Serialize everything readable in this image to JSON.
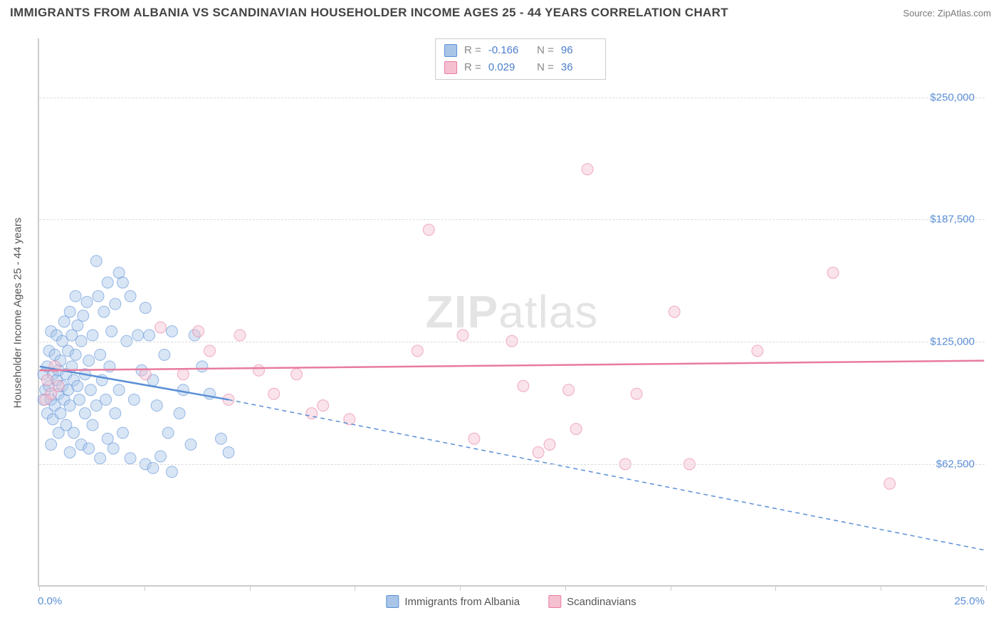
{
  "title": "IMMIGRANTS FROM ALBANIA VS SCANDINAVIAN HOUSEHOLDER INCOME AGES 25 - 44 YEARS CORRELATION CHART",
  "source_label": "Source:",
  "source_name": "ZipAtlas.com",
  "watermark": {
    "zip": "ZIP",
    "rest": "atlas"
  },
  "chart": {
    "type": "scatter",
    "background_color": "#ffffff",
    "grid_color": "#dddddd",
    "axis_color": "#cccccc",
    "label_color": "#555555",
    "tick_label_color": "#5b8fd6",
    "y_axis_label": "Householder Income Ages 25 - 44 years",
    "xlim": [
      0,
      25
    ],
    "ylim": [
      0,
      280000
    ],
    "x_ticks": [
      0,
      2.78,
      5.56,
      8.33,
      11.11,
      13.89,
      16.67,
      19.44,
      22.22,
      25
    ],
    "y_ticks": [
      62500,
      125000,
      187500,
      250000
    ],
    "y_tick_labels": [
      "$62,500",
      "$125,000",
      "$187,500",
      "$250,000"
    ],
    "x_min_label": "0.0%",
    "x_max_label": "25.0%",
    "marker_radius": 8,
    "marker_opacity": 0.45,
    "line_width": 2.5,
    "series": [
      {
        "key": "albania",
        "label": "Immigrants from Albania",
        "color": "#5b8fd6",
        "fill": "#a8c5e8",
        "R_label": "R",
        "R": "-0.166",
        "N_label": "N",
        "N": "96",
        "trend_solid": {
          "x1": 0,
          "y1": 112000,
          "x2": 5.0,
          "y2": 95000
        },
        "trend_dash": {
          "x1": 5.0,
          "y1": 95000,
          "x2": 25.0,
          "y2": 18000
        },
        "points": [
          [
            0.1,
            95000
          ],
          [
            0.1,
            108000
          ],
          [
            0.15,
            100000
          ],
          [
            0.2,
            112000
          ],
          [
            0.2,
            88000
          ],
          [
            0.25,
            120000
          ],
          [
            0.25,
            102000
          ],
          [
            0.3,
            95000
          ],
          [
            0.3,
            130000
          ],
          [
            0.35,
            108000
          ],
          [
            0.35,
            85000
          ],
          [
            0.4,
            118000
          ],
          [
            0.4,
            92000
          ],
          [
            0.45,
            105000
          ],
          [
            0.45,
            128000
          ],
          [
            0.5,
            110000
          ],
          [
            0.5,
            98000
          ],
          [
            0.5,
            78000
          ],
          [
            0.55,
            115000
          ],
          [
            0.55,
            88000
          ],
          [
            0.6,
            125000
          ],
          [
            0.6,
            102000
          ],
          [
            0.65,
            95000
          ],
          [
            0.65,
            135000
          ],
          [
            0.7,
            108000
          ],
          [
            0.7,
            82000
          ],
          [
            0.75,
            120000
          ],
          [
            0.75,
            100000
          ],
          [
            0.8,
            140000
          ],
          [
            0.8,
            92000
          ],
          [
            0.85,
            112000
          ],
          [
            0.85,
            128000
          ],
          [
            0.9,
            105000
          ],
          [
            0.9,
            78000
          ],
          [
            0.95,
            118000
          ],
          [
            0.95,
            148000
          ],
          [
            1.0,
            102000
          ],
          [
            1.0,
            133000
          ],
          [
            1.05,
            95000
          ],
          [
            1.1,
            125000
          ],
          [
            1.1,
            72000
          ],
          [
            1.15,
            138000
          ],
          [
            1.2,
            108000
          ],
          [
            1.2,
            88000
          ],
          [
            1.25,
            145000
          ],
          [
            1.3,
            115000
          ],
          [
            1.3,
            70000
          ],
          [
            1.35,
            100000
          ],
          [
            1.4,
            128000
          ],
          [
            1.4,
            82000
          ],
          [
            1.5,
            166000
          ],
          [
            1.5,
            92000
          ],
          [
            1.55,
            148000
          ],
          [
            1.6,
            118000
          ],
          [
            1.6,
            65000
          ],
          [
            1.65,
            105000
          ],
          [
            1.7,
            140000
          ],
          [
            1.75,
            95000
          ],
          [
            1.8,
            155000
          ],
          [
            1.8,
            75000
          ],
          [
            1.85,
            112000
          ],
          [
            1.9,
            130000
          ],
          [
            1.95,
            70000
          ],
          [
            2.0,
            144000
          ],
          [
            2.0,
            88000
          ],
          [
            2.1,
            160000
          ],
          [
            2.1,
            100000
          ],
          [
            2.2,
            155000
          ],
          [
            2.2,
            78000
          ],
          [
            2.3,
            125000
          ],
          [
            2.4,
            148000
          ],
          [
            2.4,
            65000
          ],
          [
            2.5,
            95000
          ],
          [
            2.6,
            128000
          ],
          [
            2.7,
            110000
          ],
          [
            2.8,
            142000
          ],
          [
            2.8,
            62000
          ],
          [
            2.9,
            128000
          ],
          [
            3.0,
            60000
          ],
          [
            3.0,
            105000
          ],
          [
            3.1,
            92000
          ],
          [
            3.2,
            66000
          ],
          [
            3.3,
            118000
          ],
          [
            3.4,
            78000
          ],
          [
            3.5,
            130000
          ],
          [
            3.5,
            58000
          ],
          [
            3.7,
            88000
          ],
          [
            3.8,
            100000
          ],
          [
            4.0,
            72000
          ],
          [
            4.1,
            128000
          ],
          [
            4.3,
            112000
          ],
          [
            4.5,
            98000
          ],
          [
            4.8,
            75000
          ],
          [
            5.0,
            68000
          ],
          [
            0.3,
            72000
          ],
          [
            0.8,
            68000
          ]
        ]
      },
      {
        "key": "scandinavian",
        "label": "Scandinavians",
        "color": "#e87ba0",
        "fill": "#f5c0d0",
        "R_label": "R",
        "R": "0.029",
        "N_label": "N",
        "N": "36",
        "trend_solid": {
          "x1": 0,
          "y1": 110000,
          "x2": 25.0,
          "y2": 115000
        },
        "trend_dash": null,
        "points": [
          [
            0.2,
            105000
          ],
          [
            0.3,
            98000
          ],
          [
            0.4,
            112000
          ],
          [
            0.5,
            102000
          ],
          [
            3.8,
            108000
          ],
          [
            4.2,
            130000
          ],
          [
            4.5,
            120000
          ],
          [
            5.0,
            95000
          ],
          [
            5.3,
            128000
          ],
          [
            5.8,
            110000
          ],
          [
            6.2,
            98000
          ],
          [
            6.8,
            108000
          ],
          [
            7.2,
            88000
          ],
          [
            7.5,
            92000
          ],
          [
            8.2,
            85000
          ],
          [
            10.0,
            120000
          ],
          [
            10.3,
            182000
          ],
          [
            11.2,
            128000
          ],
          [
            11.5,
            75000
          ],
          [
            12.5,
            125000
          ],
          [
            12.8,
            102000
          ],
          [
            13.2,
            68000
          ],
          [
            13.5,
            72000
          ],
          [
            14.0,
            100000
          ],
          [
            14.2,
            80000
          ],
          [
            14.5,
            213000
          ],
          [
            15.5,
            62000
          ],
          [
            15.8,
            98000
          ],
          [
            16.8,
            140000
          ],
          [
            17.2,
            62000
          ],
          [
            19.0,
            120000
          ],
          [
            21.0,
            160000
          ],
          [
            22.5,
            52000
          ],
          [
            3.2,
            132000
          ],
          [
            2.8,
            108000
          ],
          [
            0.15,
            95000
          ]
        ]
      }
    ],
    "bottom_legend": [
      {
        "series": "albania"
      },
      {
        "series": "scandinavian"
      }
    ]
  }
}
